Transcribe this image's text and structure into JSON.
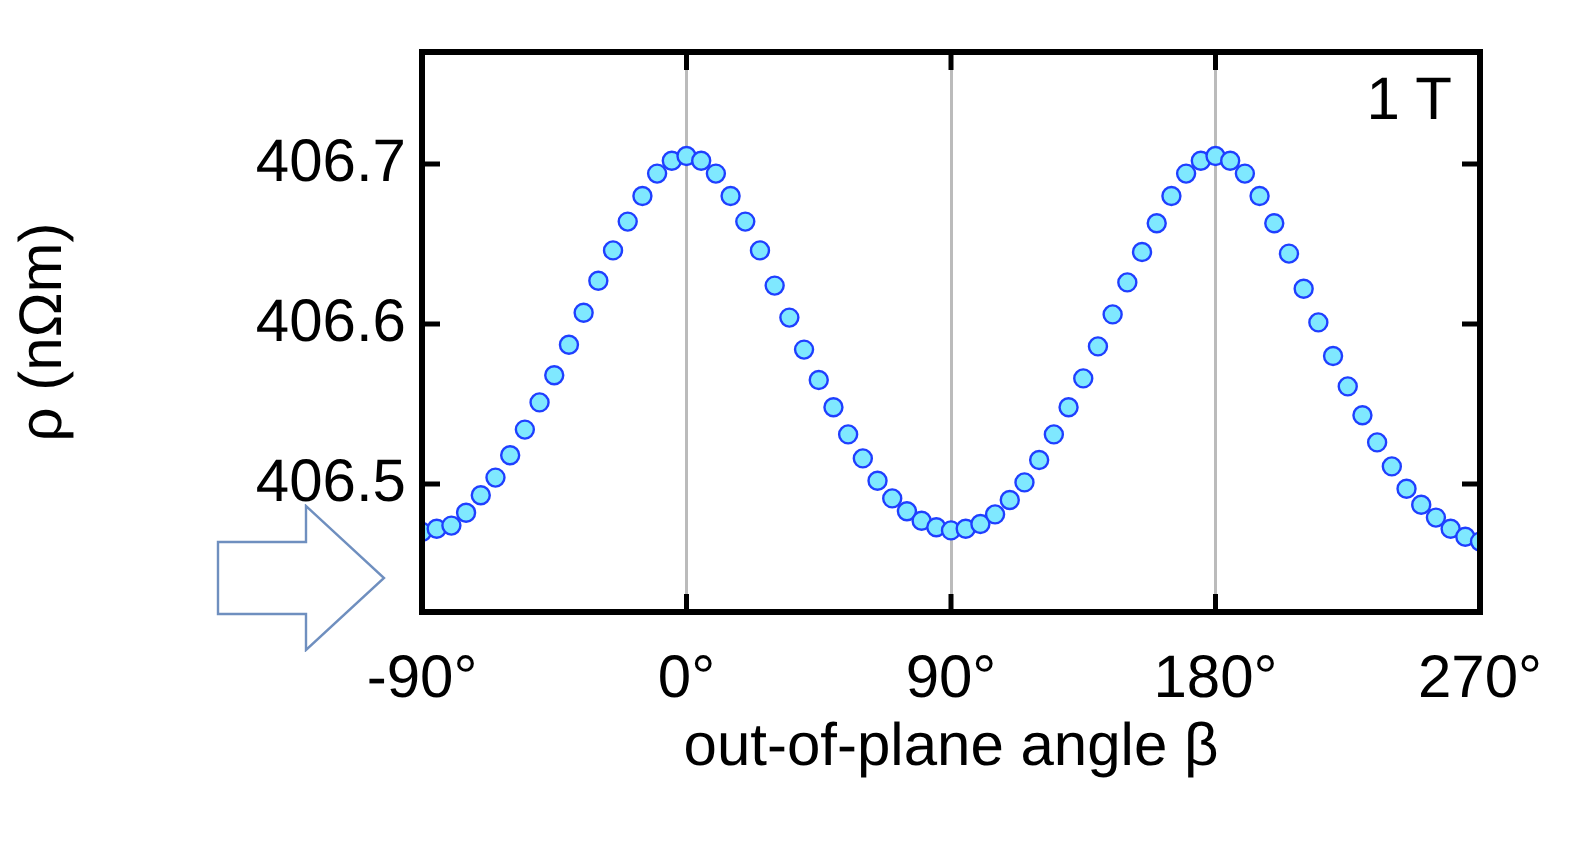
{
  "chart_data": {
    "type": "scatter",
    "xlabel": "out-of-plane angle β",
    "ylabel": "ρ (nΩm)",
    "annotations": [
      "1 T"
    ],
    "x": [
      -90,
      -85,
      -80,
      -75,
      -70,
      -65,
      -60,
      -55,
      -50,
      -45,
      -40,
      -35,
      -30,
      -25,
      -20,
      -15,
      -10,
      -5,
      0,
      5,
      10,
      15,
      20,
      25,
      30,
      35,
      40,
      45,
      50,
      55,
      60,
      65,
      70,
      75,
      80,
      85,
      90,
      95,
      100,
      105,
      110,
      115,
      120,
      125,
      130,
      135,
      140,
      145,
      150,
      155,
      160,
      165,
      170,
      175,
      180,
      185,
      190,
      195,
      200,
      205,
      210,
      215,
      220,
      225,
      230,
      235,
      240,
      245,
      250,
      255,
      260,
      265,
      270
    ],
    "series": [
      {
        "color": "#1f3fff",
        "values": [
          406.47,
          406.472,
          406.474,
          406.482,
          406.493,
          406.504,
          406.518,
          406.534,
          406.551,
          406.568,
          406.587,
          406.607,
          406.627,
          406.646,
          406.664,
          406.68,
          406.694,
          406.702,
          406.705,
          406.702,
          406.694,
          406.68,
          406.664,
          406.646,
          406.624,
          406.604,
          406.584,
          406.565,
          406.548,
          406.531,
          406.516,
          406.502,
          406.491,
          406.483,
          406.477,
          406.473,
          406.471,
          406.472,
          406.475,
          406.481,
          406.49,
          406.501,
          406.515,
          406.531,
          406.548,
          406.566,
          406.586,
          406.606,
          406.626,
          406.645,
          406.663,
          406.68,
          406.694,
          406.702,
          406.705,
          406.702,
          406.694,
          406.68,
          406.663,
          406.644,
          406.622,
          406.601,
          406.58,
          406.561,
          406.543,
          406.526,
          406.511,
          406.497,
          406.487,
          406.479,
          406.472,
          406.467,
          406.464
        ]
      }
    ],
    "xlim": [
      -90,
      270
    ],
    "xticks": [
      {
        "value": -90,
        "label": "-90°"
      },
      {
        "value": 0,
        "label": "0°"
      },
      {
        "value": 90,
        "label": "90°"
      },
      {
        "value": 180,
        "label": "180°"
      },
      {
        "value": 270,
        "label": "270°"
      }
    ],
    "ylim": [
      406.42,
      406.77
    ],
    "yticks": [
      406.5,
      406.6,
      406.7
    ],
    "grid": "x",
    "marker": "circle",
    "legend": false
  }
}
